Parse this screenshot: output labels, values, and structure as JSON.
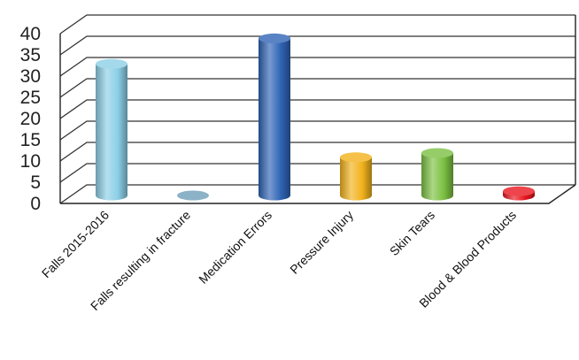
{
  "chart_data": {
    "type": "bar",
    "title": "",
    "xlabel": "",
    "ylabel": "",
    "categories": [
      "Falls 2015-2016",
      "Falls resulting in fracture",
      "Medication Errors",
      "Pressure Injury",
      "Skin Tears",
      "Blood & Blood Products"
    ],
    "values": [
      31,
      0,
      37,
      9,
      10,
      1
    ],
    "ylim": [
      0,
      40
    ],
    "yticks": [
      "0",
      "5",
      "10",
      "15",
      "20",
      "25",
      "30",
      "35",
      "40"
    ],
    "grid": true,
    "legend": "none",
    "colors": [
      "#8ccfe6",
      "#6f9fb9",
      "#2f64b5",
      "#f2b21c",
      "#7cc142",
      "#e8161e"
    ]
  }
}
